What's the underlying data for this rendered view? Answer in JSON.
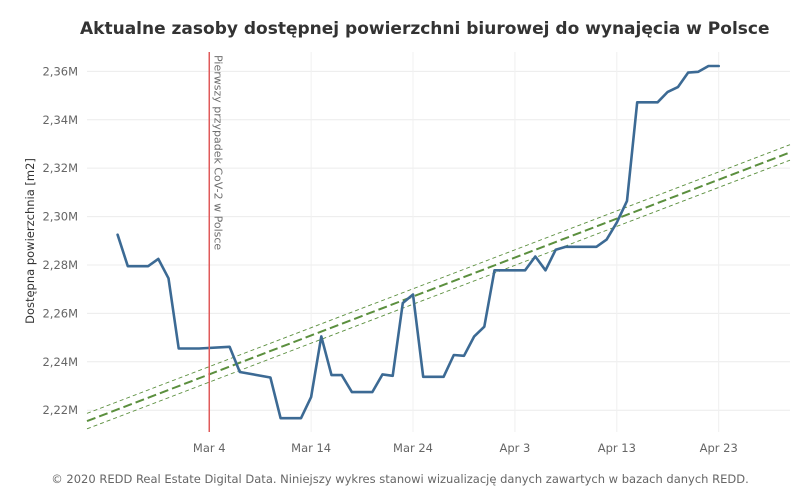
{
  "chart_data": {
    "type": "line",
    "title": "Aktualne zasoby dostępnej powierzchni biurowej do wynajęcia w Polsce",
    "xlabel": "",
    "ylabel": "Dostępna powierzchnia [m2]",
    "x_start": "Feb 24",
    "x_step": "1 day",
    "x_tick_labels": [
      "Mar 4",
      "Mar 14",
      "Mar 24",
      "Apr 3",
      "Apr 13",
      "Apr 23"
    ],
    "x_tick_days": [
      9,
      19,
      29,
      39,
      49,
      59
    ],
    "x_range_days": [
      -3,
      66
    ],
    "y_ticks": [
      2.22,
      2.24,
      2.26,
      2.28,
      2.3,
      2.32,
      2.34,
      2.36
    ],
    "y_tick_labels": [
      "2,22M",
      "2,24M",
      "2,26M",
      "2,28M",
      "2,30M",
      "2,32M",
      "2,34M",
      "2,36M"
    ],
    "ylim": [
      2.211,
      2.368
    ],
    "grid": true,
    "series": [
      {
        "color": "#3c6a94",
        "points": [
          [
            0,
            2.2925
          ],
          [
            1,
            2.2795
          ],
          [
            2,
            2.2795
          ],
          [
            3,
            2.2795
          ],
          [
            4,
            2.2825
          ],
          [
            5,
            2.2745
          ],
          [
            6,
            2.2455
          ],
          [
            7,
            2.2455
          ],
          [
            8,
            2.2455
          ],
          [
            11,
            2.2462
          ],
          [
            12,
            2.2358
          ],
          [
            15,
            2.2335
          ],
          [
            16,
            2.2167
          ],
          [
            17,
            2.2167
          ],
          [
            18,
            2.2167
          ],
          [
            19,
            2.2254
          ],
          [
            20,
            2.2505
          ],
          [
            21,
            2.2345
          ],
          [
            22,
            2.2345
          ],
          [
            23,
            2.2275
          ],
          [
            24,
            2.2275
          ],
          [
            25,
            2.2275
          ],
          [
            26,
            2.2348
          ],
          [
            27,
            2.2342
          ],
          [
            28,
            2.2643
          ],
          [
            29,
            2.2678
          ],
          [
            30,
            2.2338
          ],
          [
            31,
            2.2338
          ],
          [
            32,
            2.2338
          ],
          [
            33,
            2.2428
          ],
          [
            34,
            2.2425
          ],
          [
            35,
            2.2505
          ],
          [
            36,
            2.2545
          ],
          [
            37,
            2.2778
          ],
          [
            38,
            2.2778
          ],
          [
            39,
            2.2778
          ],
          [
            40,
            2.2778
          ],
          [
            41,
            2.2835
          ],
          [
            42,
            2.2778
          ],
          [
            43,
            2.2863
          ],
          [
            44,
            2.2875
          ],
          [
            45,
            2.2875
          ],
          [
            46,
            2.2875
          ],
          [
            47,
            2.2875
          ],
          [
            48,
            2.2905
          ],
          [
            49,
            2.2975
          ],
          [
            50,
            2.3065
          ],
          [
            51,
            2.3472
          ],
          [
            52,
            2.3472
          ],
          [
            53,
            2.3472
          ],
          [
            54,
            2.3515
          ],
          [
            55,
            2.3535
          ],
          [
            56,
            2.3595
          ],
          [
            57,
            2.3598
          ],
          [
            58,
            2.3622
          ],
          [
            59,
            2.3622
          ]
        ]
      }
    ],
    "trend_line": {
      "color": "#5b8f3e",
      "start": [
        -3,
        2.2155
      ],
      "end": [
        66,
        2.3265
      ],
      "band": 0.0032
    },
    "reference_line": {
      "day": 9,
      "color": "#e05a5a",
      "label": "Pierwszy przypadek CoV-2 w Polsce"
    }
  },
  "footer": "© 2020 REDD Real Estate Digital Data. Niniejszy wykres stanowi wizualizację danych zawartych w bazach danych REDD."
}
